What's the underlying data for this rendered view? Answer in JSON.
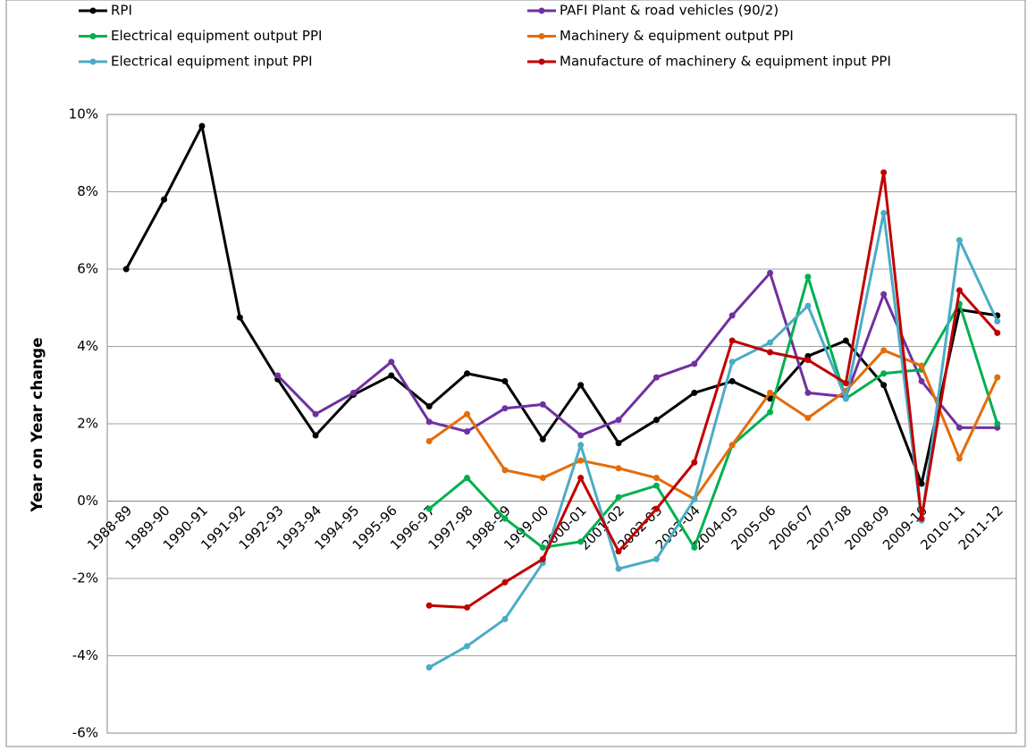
{
  "chart_data": {
    "type": "line",
    "y_label": "Year on Year change",
    "categories": [
      "1988-89",
      "1989-90",
      "1990-91",
      "1991-92",
      "1992-93",
      "1993-94",
      "1994-95",
      "1995-96",
      "1996-97",
      "1997-98",
      "1998-99",
      "1999-00",
      "2000-01",
      "2001-02",
      "2002-03",
      "2003-04",
      "2004-05",
      "2005-06",
      "2006-07",
      "2007-08",
      "2008-09",
      "2009-10",
      "2010-11",
      "2011-12"
    ],
    "series": [
      {
        "name": "RPI",
        "color": "#000000",
        "values": [
          6.0,
          7.8,
          9.7,
          4.75,
          3.15,
          1.7,
          2.75,
          3.25,
          2.45,
          3.3,
          3.1,
          1.6,
          3.0,
          1.5,
          2.1,
          2.8,
          3.1,
          2.65,
          3.75,
          4.15,
          3.0,
          0.45,
          4.95,
          4.8
        ]
      },
      {
        "name": "PAFI Plant & road vehicles (90/2)",
        "color": "#7030a0",
        "values": [
          null,
          null,
          null,
          null,
          3.25,
          2.25,
          2.8,
          3.6,
          2.05,
          1.8,
          2.4,
          2.5,
          1.7,
          2.1,
          3.2,
          3.55,
          4.8,
          5.9,
          2.8,
          2.7,
          5.35,
          3.1,
          1.9,
          1.9
        ]
      },
      {
        "name": "Electrical equipment output PPI",
        "color": "#00b050",
        "values": [
          null,
          null,
          null,
          null,
          null,
          null,
          null,
          null,
          -0.2,
          0.6,
          -0.45,
          -1.2,
          -1.05,
          0.1,
          0.4,
          -1.2,
          1.45,
          2.3,
          5.8,
          2.65,
          3.3,
          3.4,
          5.1,
          2.0
        ]
      },
      {
        "name": "Machinery & equipment output PPI",
        "color": "#e46c0a",
        "values": [
          null,
          null,
          null,
          null,
          null,
          null,
          null,
          null,
          1.55,
          2.25,
          0.8,
          0.6,
          1.05,
          0.85,
          0.6,
          0.05,
          1.45,
          2.8,
          2.15,
          2.85,
          3.9,
          3.5,
          1.1,
          3.2
        ]
      },
      {
        "name": "Electrical equipment input PPI",
        "color": "#4bacc6",
        "values": [
          null,
          null,
          null,
          null,
          null,
          null,
          null,
          null,
          -4.3,
          -3.75,
          -3.05,
          -1.6,
          1.45,
          -1.75,
          -1.5,
          0.05,
          3.6,
          4.1,
          5.05,
          2.65,
          7.45,
          -0.5,
          6.75,
          4.65
        ]
      },
      {
        "name": "Manufacture of machinery & equipment input PPI",
        "color": "#c00000",
        "values": [
          null,
          null,
          null,
          null,
          null,
          null,
          null,
          null,
          -2.7,
          -2.75,
          -2.1,
          -1.5,
          0.6,
          -1.3,
          -0.2,
          1.0,
          4.15,
          3.85,
          3.65,
          3.05,
          8.5,
          -0.45,
          5.45,
          4.35
        ]
      }
    ],
    "ylim": [
      -6,
      10
    ],
    "yticks": [
      {
        "value": -6,
        "label": "-6%"
      },
      {
        "value": -4,
        "label": "-4%"
      },
      {
        "value": -2,
        "label": "-2%"
      },
      {
        "value": 0,
        "label": "0%"
      },
      {
        "value": 2,
        "label": "2%"
      },
      {
        "value": 4,
        "label": "4%"
      },
      {
        "value": 6,
        "label": "6%"
      },
      {
        "value": 8,
        "label": "8%"
      },
      {
        "value": 10,
        "label": "10%"
      }
    ],
    "grid": true
  }
}
